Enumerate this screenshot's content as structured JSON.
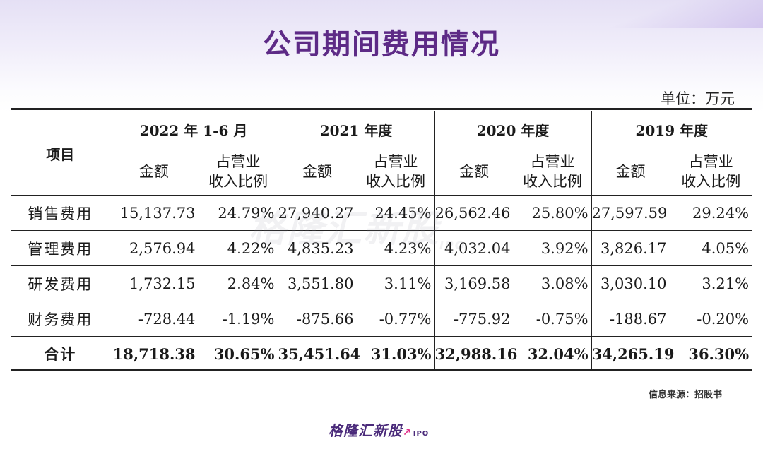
{
  "title": "公司期间费用情况",
  "unit": "单位：万元",
  "table": {
    "item_header": "项目",
    "periods": [
      "2022 年 1-6 月",
      "2021 年度",
      "2020 年度",
      "2019 年度"
    ],
    "sub_amount": "金额",
    "sub_ratio_line1": "占营业",
    "sub_ratio_line2": "收入比例",
    "rows": [
      {
        "label": "销售费用",
        "cells": [
          "15,137.73",
          "24.79%",
          "27,940.27",
          "24.45%",
          "26,562.46",
          "25.80%",
          "27,597.59",
          "29.24%"
        ]
      },
      {
        "label": "管理费用",
        "cells": [
          "2,576.94",
          "4.22%",
          "4,835.23",
          "4.23%",
          "4,032.04",
          "3.92%",
          "3,826.17",
          "4.05%"
        ]
      },
      {
        "label": "研发费用",
        "cells": [
          "1,732.15",
          "2.84%",
          "3,551.80",
          "3.11%",
          "3,169.58",
          "3.08%",
          "3,030.10",
          "3.21%"
        ]
      },
      {
        "label": "财务费用",
        "cells": [
          "-728.44",
          "-1.19%",
          "-875.66",
          "-0.77%",
          "-775.92",
          "-0.75%",
          "-188.67",
          "-0.20%"
        ]
      },
      {
        "label": "合计",
        "cells": [
          "18,718.38",
          "30.65%",
          "35,451.64",
          "31.03%",
          "32,988.16",
          "32.04%",
          "34,265.19",
          "36.30%"
        ]
      }
    ]
  },
  "watermark": {
    "text": "格隆汇新股",
    "ipo": "IPO"
  },
  "source": "信息来源：招股书",
  "logo": {
    "text": "格隆汇新股",
    "ipo": "IPO"
  }
}
